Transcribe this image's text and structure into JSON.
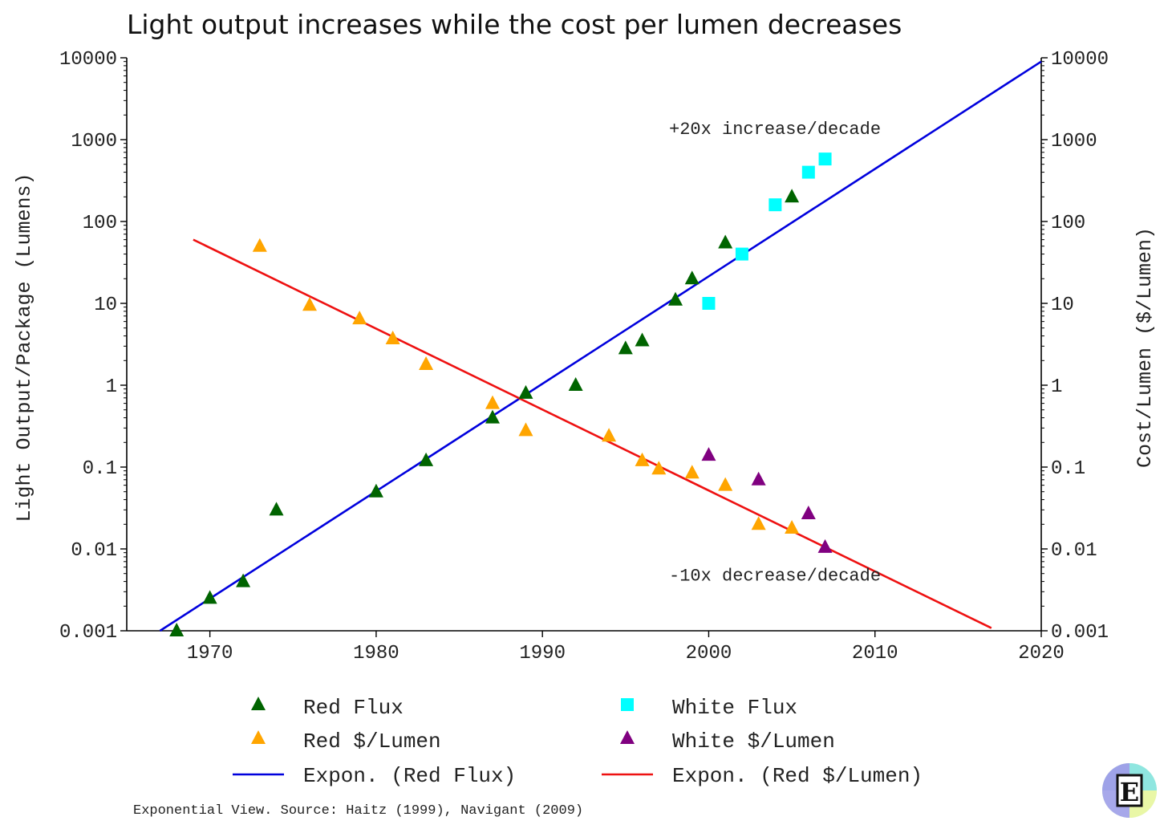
{
  "chart_data": {
    "type": "scatter",
    "title": "Light output increases while the cost per lumen decreases",
    "xlabel": "",
    "ylabel_left": "Light Output/Package (Lumens)",
    "ylabel_right": "Cost/Lumen ($/Lumen)",
    "xlim": [
      1965,
      2020
    ],
    "ylim": [
      0.001,
      10000
    ],
    "yscale": "log",
    "x_ticks": [
      "1970",
      "1980",
      "1990",
      "2000",
      "2010",
      "2020"
    ],
    "y_ticks": [
      "0.001",
      "0.01",
      "0.1",
      "1",
      "10",
      "100",
      "1000",
      "10000"
    ],
    "grid": false,
    "legend_position": "bottom",
    "series": [
      {
        "name": "Red Flux",
        "marker": "triangle",
        "color": "#006400",
        "points": [
          {
            "x": 1968,
            "y": 0.001
          },
          {
            "x": 1970,
            "y": 0.0025
          },
          {
            "x": 1972,
            "y": 0.004
          },
          {
            "x": 1974,
            "y": 0.03
          },
          {
            "x": 1980,
            "y": 0.05
          },
          {
            "x": 1983,
            "y": 0.12
          },
          {
            "x": 1987,
            "y": 0.4
          },
          {
            "x": 1989,
            "y": 0.8
          },
          {
            "x": 1992,
            "y": 1.0
          },
          {
            "x": 1995,
            "y": 2.8
          },
          {
            "x": 1996,
            "y": 3.5
          },
          {
            "x": 1998,
            "y": 11
          },
          {
            "x": 1999,
            "y": 20
          },
          {
            "x": 2001,
            "y": 55
          },
          {
            "x": 2005,
            "y": 200
          }
        ]
      },
      {
        "name": "White Flux",
        "marker": "square",
        "color": "#00ffff",
        "points": [
          {
            "x": 2000,
            "y": 10
          },
          {
            "x": 2002,
            "y": 40
          },
          {
            "x": 2004,
            "y": 160
          },
          {
            "x": 2006,
            "y": 400
          },
          {
            "x": 2007,
            "y": 580
          }
        ]
      },
      {
        "name": "Red $/Lumen",
        "marker": "triangle",
        "color": "#ffa500",
        "points": [
          {
            "x": 1973,
            "y": 50
          },
          {
            "x": 1976,
            "y": 9.5
          },
          {
            "x": 1979,
            "y": 6.5
          },
          {
            "x": 1981,
            "y": 3.7
          },
          {
            "x": 1983,
            "y": 1.8
          },
          {
            "x": 1987,
            "y": 0.6
          },
          {
            "x": 1989,
            "y": 0.28
          },
          {
            "x": 1994,
            "y": 0.24
          },
          {
            "x": 1996,
            "y": 0.12
          },
          {
            "x": 1997,
            "y": 0.095
          },
          {
            "x": 1999,
            "y": 0.085
          },
          {
            "x": 2001,
            "y": 0.06
          },
          {
            "x": 2003,
            "y": 0.02
          },
          {
            "x": 2005,
            "y": 0.018
          }
        ]
      },
      {
        "name": "White $/Lumen",
        "marker": "triangle",
        "color": "#800080",
        "points": [
          {
            "x": 2000,
            "y": 0.14
          },
          {
            "x": 2003,
            "y": 0.07
          },
          {
            "x": 2006,
            "y": 0.027
          },
          {
            "x": 2007,
            "y": 0.0105
          }
        ]
      },
      {
        "name": "Expon. (Red Flux)",
        "marker": "line",
        "color": "#0000dd",
        "points": [
          {
            "x": 1967,
            "y": 0.001
          },
          {
            "x": 2020,
            "y": 9000
          }
        ]
      },
      {
        "name": "Expon. (Red $/Lumen)",
        "marker": "line",
        "color": "#ee1111",
        "points": [
          {
            "x": 1969,
            "y": 60
          },
          {
            "x": 2017,
            "y": 0.00108
          }
        ]
      }
    ],
    "annotations": [
      {
        "text": "+20x increase/decade",
        "x": 1998,
        "y": 1000
      },
      {
        "text": "-10x decrease/decade",
        "x": 1998,
        "y": 0.0035
      }
    ],
    "source": "Exponential View. Source: Haitz (1999), Navigant (2009)"
  },
  "logo": {
    "letter": "E",
    "name": "Exponential View logo"
  }
}
